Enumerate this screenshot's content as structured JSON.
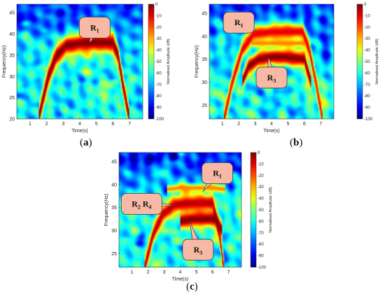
{
  "chart_data": [
    {
      "id": "a",
      "type": "heatmap",
      "caption": "a",
      "xlabel": "Time(s)",
      "ylabel": "Frequency(Hz)",
      "xlim": [
        0.2,
        7.8
      ],
      "ylim": [
        20,
        47
      ],
      "xticks": [
        1,
        2,
        3,
        4,
        5,
        6,
        7
      ],
      "yticks": [
        20,
        25,
        30,
        35,
        40,
        45
      ],
      "colorbar": {
        "label": "Normalised Amplitude (dB)",
        "ticks": [
          0,
          -10,
          -20,
          -30,
          -40,
          -50,
          -60,
          -70,
          -80,
          -90,
          -100
        ],
        "range": [
          -100,
          0
        ]
      },
      "ridges": [
        {
          "t": [
            1.5,
            2.1,
            2.6,
            3.2,
            4,
            5,
            6,
            6.3,
            6.6,
            7.0
          ],
          "f": [
            20,
            30,
            35,
            37.3,
            37.8,
            38,
            38,
            35,
            28,
            20
          ],
          "level": 0,
          "width": 2.2
        }
      ],
      "annotations": [
        {
          "label": "R",
          "sub": "1",
          "t": 4.9,
          "f": 41.5,
          "pointer_t": 4.6,
          "pointer_f": 37.8
        }
      ]
    },
    {
      "id": "b",
      "type": "heatmap",
      "caption": "b",
      "xlabel": "Time(s)",
      "ylabel": "Frequency(Hz)",
      "xlim": [
        0.2,
        7.8
      ],
      "ylim": [
        22,
        47
      ],
      "xticks": [
        1,
        2,
        3,
        4,
        5,
        6,
        7
      ],
      "yticks": [
        25,
        30,
        35,
        40,
        45
      ],
      "colorbar": {
        "label": "Normalised Amplitude (dB)",
        "ticks": [
          0,
          -10,
          -20,
          -30,
          -40,
          -50,
          -60,
          -70,
          -80,
          -90,
          -100
        ],
        "range": [
          -100,
          0
        ]
      },
      "ridges": [
        {
          "t": [
            1.1,
            1.6,
            2.2,
            2.9,
            4,
            5,
            5.9,
            6.3,
            6.7,
            7.1
          ],
          "f": [
            22,
            30,
            37,
            40.5,
            41,
            41,
            41,
            37,
            30,
            22
          ],
          "level": -10,
          "width": 1.8
        },
        {
          "t": [
            2.2,
            2.6,
            3.2,
            4,
            5,
            6.0,
            6.4
          ],
          "f": [
            30,
            33.5,
            35,
            35.5,
            35.5,
            35,
            30
          ],
          "level": 0,
          "width": 1.6
        },
        {
          "t": [
            2.8,
            3.5,
            4.5,
            5.5,
            6.2
          ],
          "f": [
            38.5,
            38.5,
            38.5,
            38.5,
            38.5
          ],
          "level": -25,
          "width": 0.8
        }
      ],
      "annotations": [
        {
          "label": "R",
          "sub": "1",
          "t": 2.0,
          "f": 43,
          "pointer_t": 3.1,
          "pointer_f": 41
        },
        {
          "label": "R",
          "sub": "3",
          "t": 4.0,
          "f": 31,
          "pointer_t": 3.8,
          "pointer_f": 35.5
        }
      ]
    },
    {
      "id": "c",
      "type": "heatmap",
      "caption": "c",
      "xlabel": "Time(s)",
      "ylabel": "Frequency(Hz)",
      "xlim": [
        0.2,
        7.8
      ],
      "ylim": [
        22,
        47
      ],
      "xticks": [
        1,
        2,
        3,
        4,
        5,
        6,
        7
      ],
      "yticks": [
        25,
        30,
        35,
        40,
        45
      ],
      "colorbar": {
        "label": "Normalised Amplitude (dB)",
        "ticks": [
          0,
          -10,
          -20,
          -30,
          -40,
          -50,
          -60,
          -70,
          -80,
          -90,
          -100
        ],
        "range": [
          -100,
          0
        ]
      },
      "ridges": [
        {
          "t": [
            1.8,
            2.3,
            2.9,
            3.6,
            4.5,
            5.5,
            6.0,
            6.4,
            6.7
          ],
          "f": [
            22,
            29,
            33.5,
            35.5,
            36,
            36,
            36,
            30,
            22
          ],
          "level": -5,
          "width": 1.8
        },
        {
          "t": [
            4.0,
            4.7,
            5.5,
            6.2,
            6.6
          ],
          "f": [
            32,
            32.5,
            32.5,
            32.5,
            30
          ],
          "level": 0,
          "width": 1.6
        },
        {
          "t": [
            3.2,
            4.0,
            5.0,
            6.0,
            6.8
          ],
          "f": [
            39,
            39.3,
            39.3,
            39.3,
            39
          ],
          "level": -25,
          "width": 0.8
        }
      ],
      "annotations": [
        {
          "label": "R",
          "sub": "1",
          "t": 6.3,
          "f": 42.5,
          "pointer_t": 5.4,
          "pointer_f": 38.5
        },
        {
          "label": "R",
          "sub": "2",
          "label2": "R",
          "sub2": "4",
          "t": 1.6,
          "f": 35.8,
          "pointer_t": 3.6,
          "pointer_f": 35.5
        },
        {
          "label": "R",
          "sub": "3",
          "t": 5.1,
          "f": 25.8,
          "pointer_t": 4.6,
          "pointer_f": 32
        }
      ]
    }
  ]
}
